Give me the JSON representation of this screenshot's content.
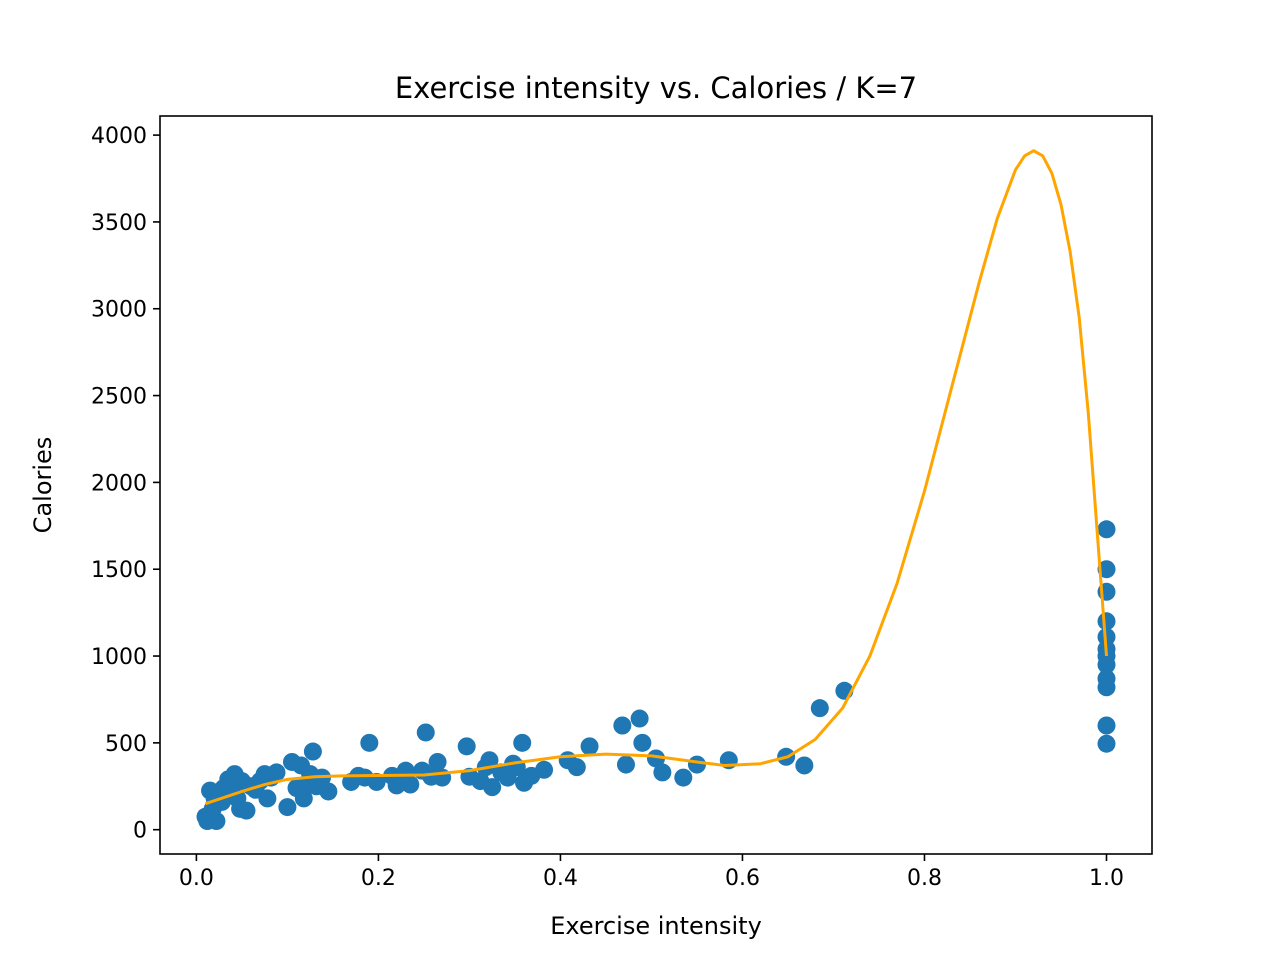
{
  "chart_data": {
    "type": "scatter",
    "title": "Exercise intensity vs. Calories / K=7",
    "xlabel": "Exercise intensity",
    "ylabel": "Calories",
    "xlim": [
      -0.04,
      1.05
    ],
    "ylim": [
      -140,
      4110
    ],
    "xticks": [
      0.0,
      0.2,
      0.4,
      0.6,
      0.8,
      1.0
    ],
    "xtick_labels": [
      "0.0",
      "0.2",
      "0.4",
      "0.6",
      "0.8",
      "1.0"
    ],
    "yticks": [
      0,
      500,
      1000,
      1500,
      2000,
      2500,
      3000,
      3500,
      4000
    ],
    "ytick_labels": [
      "0",
      "500",
      "1000",
      "1500",
      "2000",
      "2500",
      "3000",
      "3500",
      "4000"
    ],
    "grid": false,
    "colors": {
      "points": "#1f77b4",
      "fit": "#ffa500"
    },
    "series": [
      {
        "type": "scatter",
        "points": [
          [
            0.01,
            75
          ],
          [
            0.012,
            50
          ],
          [
            0.015,
            225
          ],
          [
            0.018,
            120
          ],
          [
            0.02,
            180
          ],
          [
            0.022,
            50
          ],
          [
            0.025,
            210
          ],
          [
            0.028,
            160
          ],
          [
            0.03,
            240
          ],
          [
            0.032,
            200
          ],
          [
            0.035,
            290
          ],
          [
            0.038,
            220
          ],
          [
            0.04,
            260
          ],
          [
            0.042,
            320
          ],
          [
            0.045,
            180
          ],
          [
            0.048,
            120
          ],
          [
            0.05,
            280
          ],
          [
            0.055,
            110
          ],
          [
            0.06,
            250
          ],
          [
            0.065,
            230
          ],
          [
            0.07,
            280
          ],
          [
            0.075,
            320
          ],
          [
            0.078,
            180
          ],
          [
            0.082,
            300
          ],
          [
            0.088,
            330
          ],
          [
            0.1,
            130
          ],
          [
            0.105,
            390
          ],
          [
            0.11,
            240
          ],
          [
            0.115,
            370
          ],
          [
            0.118,
            180
          ],
          [
            0.122,
            260
          ],
          [
            0.125,
            320
          ],
          [
            0.128,
            450
          ],
          [
            0.132,
            250
          ],
          [
            0.138,
            300
          ],
          [
            0.145,
            220
          ],
          [
            0.17,
            275
          ],
          [
            0.178,
            310
          ],
          [
            0.185,
            300
          ],
          [
            0.19,
            500
          ],
          [
            0.198,
            275
          ],
          [
            0.215,
            310
          ],
          [
            0.22,
            255
          ],
          [
            0.23,
            340
          ],
          [
            0.235,
            260
          ],
          [
            0.248,
            340
          ],
          [
            0.252,
            560
          ],
          [
            0.258,
            305
          ],
          [
            0.265,
            390
          ],
          [
            0.27,
            300
          ],
          [
            0.297,
            480
          ],
          [
            0.3,
            305
          ],
          [
            0.312,
            280
          ],
          [
            0.318,
            360
          ],
          [
            0.322,
            400
          ],
          [
            0.325,
            245
          ],
          [
            0.335,
            330
          ],
          [
            0.342,
            300
          ],
          [
            0.348,
            380
          ],
          [
            0.352,
            360
          ],
          [
            0.358,
            500
          ],
          [
            0.36,
            270
          ],
          [
            0.368,
            310
          ],
          [
            0.382,
            345
          ],
          [
            0.408,
            400
          ],
          [
            0.418,
            360
          ],
          [
            0.432,
            480
          ],
          [
            0.468,
            600
          ],
          [
            0.472,
            375
          ],
          [
            0.487,
            640
          ],
          [
            0.49,
            500
          ],
          [
            0.505,
            410
          ],
          [
            0.512,
            330
          ],
          [
            0.535,
            300
          ],
          [
            0.55,
            375
          ],
          [
            0.585,
            400
          ],
          [
            0.648,
            420
          ],
          [
            0.668,
            370
          ],
          [
            0.685,
            700
          ],
          [
            0.712,
            800
          ],
          [
            1.0,
            1730
          ],
          [
            1.0,
            1500
          ],
          [
            1.0,
            1370
          ],
          [
            1.0,
            1200
          ],
          [
            1.0,
            1110
          ],
          [
            1.0,
            1040
          ],
          [
            1.0,
            1000
          ],
          [
            1.0,
            950
          ],
          [
            1.0,
            870
          ],
          [
            1.0,
            820
          ],
          [
            1.0,
            600
          ],
          [
            1.0,
            495
          ]
        ]
      },
      {
        "type": "line",
        "points": [
          [
            0.01,
            150
          ],
          [
            0.03,
            185
          ],
          [
            0.05,
            220
          ],
          [
            0.075,
            260
          ],
          [
            0.1,
            290
          ],
          [
            0.13,
            305
          ],
          [
            0.16,
            310
          ],
          [
            0.2,
            312
          ],
          [
            0.25,
            315
          ],
          [
            0.3,
            340
          ],
          [
            0.35,
            385
          ],
          [
            0.4,
            420
          ],
          [
            0.45,
            435
          ],
          [
            0.5,
            425
          ],
          [
            0.55,
            390
          ],
          [
            0.58,
            370
          ],
          [
            0.62,
            380
          ],
          [
            0.65,
            420
          ],
          [
            0.68,
            520
          ],
          [
            0.71,
            700
          ],
          [
            0.74,
            1000
          ],
          [
            0.77,
            1420
          ],
          [
            0.8,
            1950
          ],
          [
            0.83,
            2550
          ],
          [
            0.86,
            3150
          ],
          [
            0.88,
            3520
          ],
          [
            0.9,
            3800
          ],
          [
            0.91,
            3880
          ],
          [
            0.92,
            3910
          ],
          [
            0.93,
            3880
          ],
          [
            0.94,
            3780
          ],
          [
            0.95,
            3600
          ],
          [
            0.96,
            3330
          ],
          [
            0.97,
            2950
          ],
          [
            0.98,
            2400
          ],
          [
            0.99,
            1700
          ],
          [
            1.0,
            1000
          ]
        ]
      }
    ]
  }
}
